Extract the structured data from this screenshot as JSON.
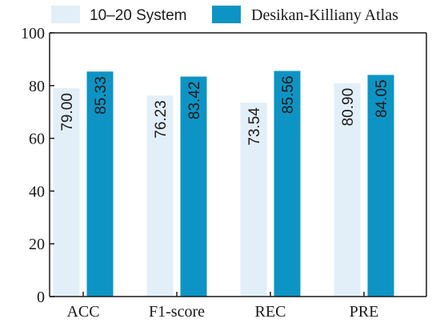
{
  "chart_data": {
    "type": "bar",
    "categories": [
      "ACC",
      "F1-score",
      "REC",
      "PRE"
    ],
    "series": [
      {
        "name": "10–20 System",
        "values": [
          79.0,
          76.23,
          73.54,
          80.9
        ],
        "labels": [
          "79.00",
          "76.23",
          "73.54",
          "80.90"
        ],
        "color": "#e3eff8"
      },
      {
        "name": "Desikan-Killiany Atlas",
        "values": [
          85.33,
          83.42,
          85.56,
          84.05
        ],
        "labels": [
          "85.33",
          "83.42",
          "85.56",
          "84.05"
        ],
        "color": "#0e94c4"
      }
    ],
    "yticks": [
      "0",
      "20",
      "40",
      "60",
      "80",
      "100"
    ],
    "ylim": [
      0,
      100
    ],
    "title": "",
    "xlabel": "",
    "ylabel": "",
    "grid": false,
    "legend": "top"
  }
}
